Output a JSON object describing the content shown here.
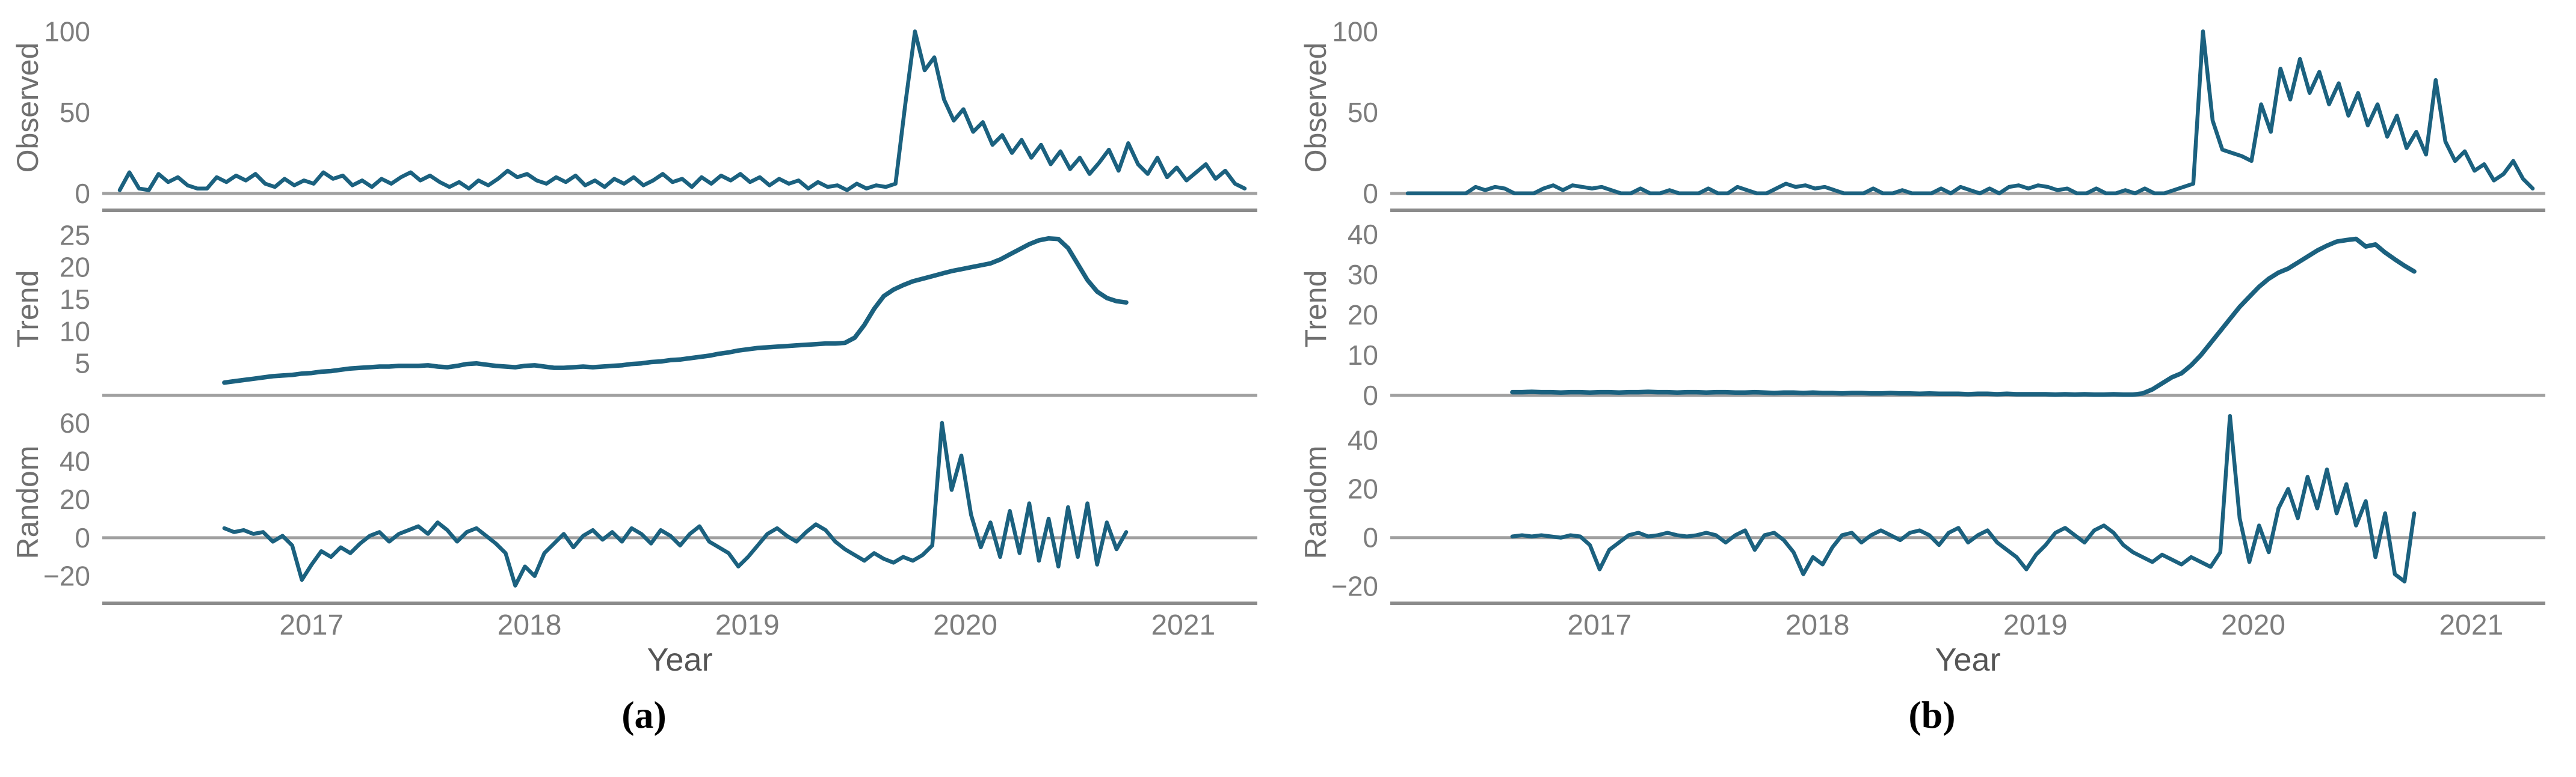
{
  "figure": {
    "description": "Seasonal-trend decomposition of two weekly time series (Observed, Trend, Random components) from 2016 to 2021",
    "captions": {
      "a": "(a)",
      "b": "(b)"
    },
    "colors": {
      "series_line": "#1b617f",
      "zero_line": "#a0a0a0",
      "axis_line": "#8b8b8b",
      "tick_text": "#7d7d7d",
      "axis_title_text": "#6f6f6f",
      "xlabel_text": "#555555",
      "caption_text": "#000000"
    }
  },
  "chart_data": [
    {
      "id": "a",
      "caption": "(a)",
      "type": "line",
      "xlabel": "Year",
      "x_ticks": [
        2017,
        2018,
        2019,
        2020,
        2021
      ],
      "xlim": [
        2016.04,
        2021.34
      ],
      "legend": "none",
      "grid": "zero-line-only",
      "subplots": [
        {
          "ylabel": "Observed",
          "ylim": [
            -6,
            112
          ],
          "yticks": [
            0,
            50,
            100
          ],
          "x0": 2016.12,
          "dx": 0.0445,
          "values": [
            2,
            13,
            3,
            2,
            12,
            7,
            10,
            5,
            3,
            3,
            10,
            7,
            11,
            8,
            12,
            6,
            4,
            9,
            5,
            8,
            6,
            13,
            9,
            11,
            5,
            8,
            4,
            9,
            6,
            10,
            13,
            8,
            11,
            7,
            4,
            7,
            3,
            8,
            5,
            9,
            14,
            10,
            12,
            8,
            6,
            10,
            7,
            11,
            5,
            8,
            4,
            9,
            6,
            10,
            5,
            8,
            12,
            7,
            9,
            4,
            10,
            6,
            11,
            8,
            12,
            7,
            10,
            5,
            9,
            6,
            8,
            3,
            7,
            4,
            5,
            2,
            6,
            3,
            5,
            4,
            6,
            55,
            100,
            76,
            84,
            58,
            45,
            52,
            38,
            44,
            30,
            36,
            25,
            33,
            22,
            30,
            18,
            26,
            15,
            22,
            12,
            19,
            27,
            14,
            31,
            18,
            12,
            22,
            10,
            16,
            8,
            13,
            18,
            9,
            14,
            6,
            3
          ]
        },
        {
          "ylabel": "Trend",
          "ylim": [
            0,
            27
          ],
          "yticks": [
            5,
            10,
            15,
            20,
            25
          ],
          "x0": 2016.6,
          "dx": 0.0445,
          "values": [
            2.0,
            2.2,
            2.4,
            2.6,
            2.8,
            3.0,
            3.1,
            3.2,
            3.4,
            3.5,
            3.7,
            3.8,
            4.0,
            4.2,
            4.3,
            4.4,
            4.5,
            4.5,
            4.6,
            4.6,
            4.6,
            4.7,
            4.5,
            4.4,
            4.6,
            4.9,
            5.0,
            4.8,
            4.6,
            4.5,
            4.4,
            4.6,
            4.7,
            4.5,
            4.3,
            4.3,
            4.4,
            4.5,
            4.4,
            4.5,
            4.6,
            4.7,
            4.9,
            5.0,
            5.2,
            5.3,
            5.5,
            5.6,
            5.8,
            6.0,
            6.2,
            6.5,
            6.7,
            7.0,
            7.2,
            7.4,
            7.5,
            7.6,
            7.7,
            7.8,
            7.9,
            8.0,
            8.1,
            8.1,
            8.2,
            9.0,
            11.0,
            13.5,
            15.5,
            16.5,
            17.2,
            17.8,
            18.2,
            18.6,
            19.0,
            19.4,
            19.7,
            20.0,
            20.3,
            20.6,
            21.2,
            22.0,
            22.8,
            23.6,
            24.2,
            24.5,
            24.4,
            23.0,
            20.5,
            18.0,
            16.2,
            15.2,
            14.7,
            14.5
          ]
        },
        {
          "ylabel": "Random",
          "ylim": [
            -33,
            70
          ],
          "yticks": [
            -20,
            0,
            20,
            40,
            60
          ],
          "x0": 2016.6,
          "dx": 0.0445,
          "values": [
            5,
            3,
            4,
            2,
            3,
            -2,
            1,
            -4,
            -22,
            -14,
            -7,
            -10,
            -5,
            -8,
            -3,
            1,
            3,
            -2,
            2,
            4,
            6,
            2,
            8,
            4,
            -2,
            3,
            5,
            1,
            -3,
            -8,
            -25,
            -15,
            -20,
            -8,
            -3,
            2,
            -5,
            1,
            4,
            -1,
            3,
            -2,
            5,
            2,
            -3,
            4,
            1,
            -4,
            2,
            6,
            -2,
            -5,
            -8,
            -15,
            -10,
            -4,
            2,
            5,
            1,
            -2,
            3,
            7,
            4,
            -2,
            -6,
            -9,
            -12,
            -8,
            -11,
            -13,
            -10,
            -12,
            -9,
            -4,
            60,
            25,
            43,
            12,
            -5,
            8,
            -10,
            14,
            -8,
            18,
            -12,
            10,
            -15,
            16,
            -10,
            18,
            -14,
            8,
            -6,
            3
          ]
        }
      ]
    },
    {
      "id": "b",
      "caption": "(b)",
      "type": "line",
      "xlabel": "Year",
      "x_ticks": [
        2017,
        2018,
        2019,
        2020,
        2021
      ],
      "xlim": [
        2016.04,
        2021.34
      ],
      "legend": "none",
      "grid": "zero-line-only",
      "subplots": [
        {
          "ylabel": "Observed",
          "ylim": [
            -6,
            112
          ],
          "yticks": [
            0,
            50,
            100
          ],
          "x0": 2016.12,
          "dx": 0.0445,
          "values": [
            0,
            0,
            0,
            0,
            0,
            0,
            0,
            4,
            2,
            4,
            3,
            0,
            0,
            0,
            3,
            5,
            2,
            5,
            4,
            3,
            4,
            2,
            0,
            0,
            3,
            0,
            0,
            2,
            0,
            0,
            0,
            3,
            0,
            0,
            4,
            2,
            0,
            0,
            3,
            6,
            4,
            5,
            3,
            4,
            2,
            0,
            0,
            0,
            3,
            0,
            0,
            2,
            0,
            0,
            0,
            3,
            0,
            4,
            2,
            0,
            3,
            0,
            4,
            5,
            3,
            5,
            4,
            2,
            3,
            0,
            0,
            3,
            0,
            0,
            2,
            0,
            3,
            0,
            0,
            2,
            4,
            6,
            100,
            45,
            27,
            25,
            23,
            20,
            55,
            38,
            77,
            58,
            83,
            62,
            75,
            55,
            68,
            48,
            62,
            42,
            55,
            35,
            48,
            28,
            38,
            24,
            70,
            32,
            20,
            26,
            14,
            18,
            8,
            12,
            20,
            9,
            3
          ]
        },
        {
          "ylabel": "Trend",
          "ylim": [
            0,
            43
          ],
          "yticks": [
            0,
            10,
            20,
            30,
            40
          ],
          "x0": 2016.6,
          "dx": 0.0445,
          "values": [
            0.8,
            0.8,
            0.9,
            0.8,
            0.8,
            0.7,
            0.8,
            0.8,
            0.7,
            0.8,
            0.8,
            0.7,
            0.8,
            0.8,
            0.9,
            0.8,
            0.8,
            0.7,
            0.8,
            0.8,
            0.7,
            0.8,
            0.8,
            0.7,
            0.7,
            0.8,
            0.7,
            0.6,
            0.7,
            0.7,
            0.6,
            0.7,
            0.6,
            0.6,
            0.5,
            0.6,
            0.6,
            0.5,
            0.5,
            0.6,
            0.5,
            0.5,
            0.4,
            0.5,
            0.4,
            0.4,
            0.4,
            0.3,
            0.4,
            0.4,
            0.3,
            0.4,
            0.3,
            0.3,
            0.3,
            0.3,
            0.2,
            0.3,
            0.2,
            0.3,
            0.2,
            0.2,
            0.3,
            0.2,
            0.2,
            0.5,
            1.5,
            3.0,
            4.5,
            5.5,
            7.5,
            10.0,
            13.0,
            16.0,
            19.0,
            22.0,
            24.5,
            27.0,
            29.0,
            30.5,
            31.5,
            33.0,
            34.5,
            36.0,
            37.2,
            38.2,
            38.6,
            38.9,
            37.0,
            37.5,
            35.5,
            33.8,
            32.2,
            30.8
          ]
        },
        {
          "ylabel": "Random",
          "ylim": [
            -26,
            55
          ],
          "yticks": [
            -20,
            0,
            20,
            40
          ],
          "x0": 2016.6,
          "dx": 0.0445,
          "values": [
            0.5,
            1,
            0.5,
            1,
            0.5,
            0,
            1,
            0.5,
            -3,
            -13,
            -5,
            -2,
            1,
            2,
            0.5,
            1,
            2,
            1,
            0.5,
            1,
            2,
            1,
            -2,
            1,
            3,
            -5,
            1,
            2,
            -1,
            -6,
            -15,
            -8,
            -11,
            -4,
            1,
            2,
            -2,
            1,
            3,
            1,
            -1,
            2,
            3,
            1,
            -3,
            2,
            4,
            -2,
            1,
            3,
            -2,
            -5,
            -8,
            -13,
            -7,
            -3,
            2,
            4,
            1,
            -2,
            3,
            5,
            2,
            -3,
            -6,
            -8,
            -10,
            -7,
            -9,
            -11,
            -8,
            -10,
            -12,
            -6,
            50,
            8,
            -10,
            5,
            -6,
            12,
            20,
            8,
            25,
            12,
            28,
            10,
            22,
            5,
            15,
            -8,
            10,
            -15,
            -18,
            10
          ]
        }
      ]
    }
  ]
}
